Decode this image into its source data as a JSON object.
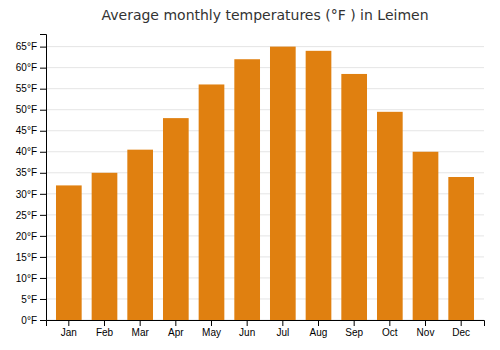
{
  "chart_data": {
    "type": "bar",
    "title": "Average monthly temperatures (°F ) in Leimen",
    "categories": [
      "Jan",
      "Feb",
      "Mar",
      "Apr",
      "May",
      "Jun",
      "Jul",
      "Aug",
      "Sep",
      "Oct",
      "Nov",
      "Dec"
    ],
    "values": [
      32,
      35,
      40.5,
      48,
      56,
      62,
      65,
      64,
      58.5,
      49.5,
      40,
      34
    ],
    "color": "#e08010",
    "ylim": [
      0,
      68
    ],
    "yticks": [
      {
        "value": 0,
        "label": "0°F"
      },
      {
        "value": 5,
        "label": "5°F"
      },
      {
        "value": 10,
        "label": "10°F"
      },
      {
        "value": 15,
        "label": "15°F"
      },
      {
        "value": 20,
        "label": "20°F"
      },
      {
        "value": 25,
        "label": "25°F"
      },
      {
        "value": 30,
        "label": "30°F"
      },
      {
        "value": 35,
        "label": "35°F"
      },
      {
        "value": 40,
        "label": "40°F"
      },
      {
        "value": 45,
        "label": "45°F"
      },
      {
        "value": 50,
        "label": "50°F"
      },
      {
        "value": 55,
        "label": "55°F"
      },
      {
        "value": 60,
        "label": "60°F"
      },
      {
        "value": 65,
        "label": "65°F"
      }
    ],
    "grid": true
  }
}
